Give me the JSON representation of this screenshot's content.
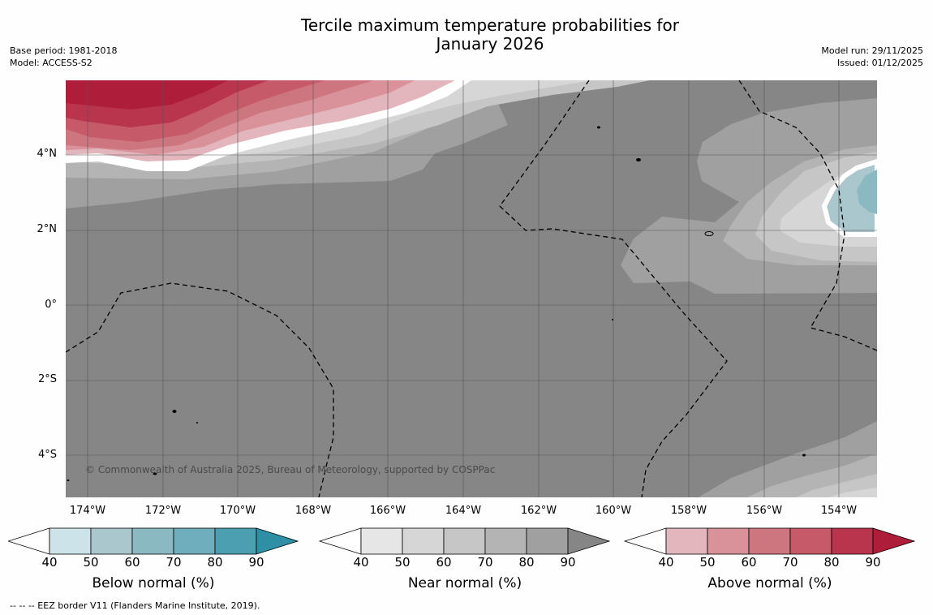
{
  "title": {
    "line1": "Tercile maximum temperature probabilities for",
    "line2": "January 2026"
  },
  "meta_left": {
    "base_period": "Base period: 1981-2018",
    "model": "Model: ACCESS-S2"
  },
  "meta_right": {
    "model_run": "Model run: 29/11/2025",
    "issued": "Issued: 01/12/2025"
  },
  "map": {
    "lat_labels": [
      "4°N",
      "2°N",
      "0°",
      "2°S",
      "4°S"
    ],
    "lon_labels": [
      "174°W",
      "172°W",
      "170°W",
      "168°W",
      "166°W",
      "164°W",
      "162°W",
      "160°W",
      "158°W",
      "156°W",
      "154°W"
    ],
    "copyright": "© Commonwealth of Australia 2025, Bureau of Meteorology, supported by COSPPac"
  },
  "legend": {
    "ticks": [
      "40",
      "50",
      "60",
      "70",
      "80",
      "90"
    ],
    "below": {
      "title": "Below normal (%)",
      "colors": [
        "#cde3ea",
        "#a9c7cd",
        "#8bb9c2",
        "#6fafbd",
        "#4b9fb1",
        "#2f8fa5"
      ]
    },
    "near": {
      "title": "Near normal (%)",
      "colors": [
        "#e6e6e6",
        "#d6d6d6",
        "#c6c6c6",
        "#b4b4b4",
        "#a0a0a0",
        "#868686"
      ]
    },
    "above": {
      "title": "Above normal (%)",
      "colors": [
        "#e2b6bc",
        "#d9919a",
        "#cd7680",
        "#c65a68",
        "#b8354d",
        "#ae1e3a"
      ]
    }
  },
  "footer": "--  --  -- EEZ border V11 (Flanders Marine Institute, 2019)."
}
